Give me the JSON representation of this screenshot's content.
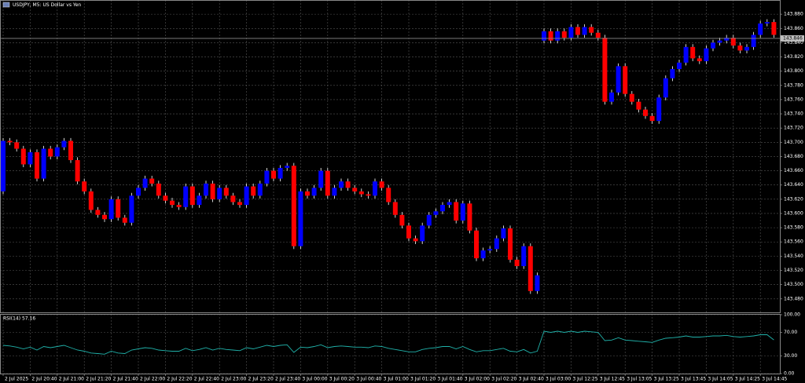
{
  "window": {
    "title": "USDJPY, M5:  US Dollar vs Yen"
  },
  "chart_data": [
    {
      "type": "candlestick",
      "categories": [
        "2 Jul 2025",
        null,
        null,
        null,
        "2 Jul 20:40",
        null,
        null,
        null,
        "2 Jul 21:00",
        null,
        null,
        null,
        "2 Jul 21:20",
        null,
        null,
        null,
        "2 Jul 21:40",
        null,
        null,
        null,
        "2 Jul 22:00",
        null,
        null,
        null,
        "2 Jul 22:20",
        null,
        null,
        null,
        "2 Jul 22:40",
        null,
        null,
        null,
        "2 Jul 23:00",
        null,
        null,
        null,
        "2 Jul 23:20",
        null,
        null,
        null,
        "2 Jul 23:40",
        null,
        null,
        null,
        "3 Jul 00:00",
        null,
        null,
        null,
        "3 Jul 00:20",
        null,
        null,
        null,
        "3 Jul 00:40",
        null,
        null,
        null,
        "3 Jul 01:00",
        null,
        null,
        null,
        "3 Jul 01:20",
        null,
        null,
        null,
        "3 Jul 01:40",
        null,
        null,
        null,
        "3 Jul 02:00",
        null,
        null,
        null,
        "3 Jul 02:20",
        null,
        null,
        null,
        "3 Jul 02:40",
        null,
        null,
        null,
        "3 Jul 03:00",
        null,
        null,
        null,
        "3 Jul 12:25",
        null,
        null,
        null,
        "3 Jul 12:45",
        null,
        null,
        null,
        "3 Jul 13:05",
        null,
        null,
        null,
        "3 Jul 13:25",
        null,
        null,
        null,
        "3 Jul 13:45",
        null,
        null,
        null,
        "3 Jul 14:05",
        null,
        null,
        null,
        "3 Jul 14:25",
        null,
        null,
        null,
        "3 Jul 14:45",
        null,
        null
      ],
      "open": [
        143.631,
        143.702,
        143.7,
        143.691,
        143.669,
        143.686,
        143.649,
        143.691,
        143.68,
        143.693,
        143.702,
        143.675,
        143.645,
        143.631,
        143.605,
        143.598,
        143.592,
        143.62,
        143.594,
        143.587,
        143.625,
        143.636,
        143.649,
        143.642,
        143.625,
        143.618,
        143.612,
        143.609,
        143.638,
        143.612,
        143.625,
        143.642,
        143.62,
        143.636,
        143.625,
        143.616,
        143.612,
        143.638,
        143.625,
        143.642,
        143.66,
        143.649,
        143.664,
        143.667,
        143.554,
        143.631,
        143.625,
        143.636,
        143.66,
        143.625,
        143.636,
        143.645,
        143.636,
        143.631,
        143.627,
        143.625,
        143.645,
        143.636,
        143.616,
        143.598,
        143.583,
        143.565,
        143.561,
        143.583,
        143.598,
        143.603,
        143.612,
        143.616,
        143.59,
        143.614,
        143.576,
        143.537,
        143.548,
        143.55,
        143.565,
        143.579,
        143.535,
        143.526,
        143.554,
        143.491,
        143.843,
        143.856,
        143.843,
        143.856,
        143.847,
        143.862,
        143.851,
        143.862,
        143.854,
        143.847,
        143.757,
        143.77,
        143.807,
        143.768,
        143.757,
        143.746,
        143.737,
        143.73,
        143.763,
        143.79,
        143.803,
        143.812,
        143.834,
        143.818,
        143.814,
        143.832,
        143.84,
        143.843,
        143.847,
        143.836,
        143.829,
        143.834,
        143.851,
        143.867,
        143.869
      ],
      "high": [
        143.706,
        143.706,
        143.704,
        143.695,
        143.69,
        143.69,
        143.695,
        143.695,
        143.697,
        143.706,
        143.706,
        143.679,
        143.649,
        143.635,
        143.609,
        143.602,
        143.624,
        143.624,
        143.598,
        143.629,
        143.64,
        143.653,
        143.653,
        143.646,
        143.629,
        143.622,
        143.616,
        143.642,
        143.642,
        143.629,
        143.646,
        143.646,
        143.64,
        143.64,
        143.629,
        143.62,
        143.642,
        143.642,
        143.646,
        143.664,
        143.664,
        143.668,
        143.671,
        143.671,
        143.635,
        143.635,
        143.64,
        143.664,
        143.664,
        143.64,
        143.649,
        143.649,
        143.64,
        143.635,
        143.631,
        143.649,
        143.649,
        143.64,
        143.62,
        143.602,
        143.587,
        143.569,
        143.587,
        143.602,
        143.607,
        143.616,
        143.62,
        143.62,
        143.618,
        143.618,
        143.58,
        143.552,
        143.554,
        143.569,
        143.583,
        143.583,
        143.539,
        143.558,
        143.558,
        143.517,
        143.86,
        143.86,
        143.86,
        143.86,
        143.866,
        143.866,
        143.866,
        143.866,
        143.858,
        143.851,
        143.774,
        143.811,
        143.811,
        143.772,
        143.761,
        143.75,
        143.741,
        143.767,
        143.794,
        143.807,
        143.816,
        143.838,
        143.838,
        143.822,
        143.836,
        143.844,
        143.847,
        143.851,
        143.851,
        143.84,
        143.838,
        143.855,
        143.871,
        143.873,
        143.873
      ],
      "low": [
        143.627,
        143.696,
        143.687,
        143.665,
        143.665,
        143.645,
        143.645,
        143.676,
        143.676,
        143.689,
        143.671,
        143.641,
        143.627,
        143.601,
        143.594,
        143.588,
        143.588,
        143.59,
        143.583,
        143.583,
        143.621,
        143.632,
        143.638,
        143.621,
        143.614,
        143.608,
        143.605,
        143.605,
        143.608,
        143.608,
        143.621,
        143.616,
        143.616,
        143.621,
        143.612,
        143.608,
        143.608,
        143.621,
        143.621,
        143.638,
        143.645,
        143.645,
        143.66,
        143.55,
        143.55,
        143.621,
        143.621,
        143.632,
        143.621,
        143.621,
        143.632,
        143.632,
        143.627,
        143.623,
        143.621,
        143.621,
        143.632,
        143.612,
        143.594,
        143.579,
        143.561,
        143.557,
        143.557,
        143.579,
        143.594,
        143.599,
        143.608,
        143.586,
        143.586,
        143.572,
        143.533,
        143.533,
        143.544,
        143.546,
        143.561,
        143.531,
        143.522,
        143.522,
        143.487,
        143.487,
        143.839,
        143.839,
        143.839,
        143.843,
        143.843,
        143.847,
        143.847,
        143.85,
        143.843,
        143.753,
        143.753,
        143.766,
        143.764,
        143.753,
        143.742,
        143.733,
        143.726,
        143.726,
        143.759,
        143.786,
        143.799,
        143.808,
        143.814,
        143.81,
        143.81,
        143.828,
        143.836,
        143.839,
        143.832,
        143.825,
        143.825,
        143.83,
        143.847,
        143.863,
        143.847
      ],
      "close": [
        143.702,
        143.7,
        143.691,
        143.669,
        143.686,
        143.649,
        143.691,
        143.68,
        143.693,
        143.702,
        143.675,
        143.645,
        143.631,
        143.605,
        143.598,
        143.592,
        143.62,
        143.594,
        143.587,
        143.625,
        143.636,
        143.649,
        143.642,
        143.625,
        143.618,
        143.612,
        143.609,
        143.638,
        143.612,
        143.625,
        143.642,
        143.62,
        143.636,
        143.625,
        143.616,
        143.612,
        143.638,
        143.625,
        143.642,
        143.66,
        143.649,
        143.664,
        143.667,
        143.554,
        143.631,
        143.625,
        143.636,
        143.66,
        143.625,
        143.636,
        143.645,
        143.636,
        143.631,
        143.627,
        143.625,
        143.645,
        143.636,
        143.616,
        143.598,
        143.583,
        143.565,
        143.561,
        143.583,
        143.598,
        143.603,
        143.612,
        143.616,
        143.59,
        143.614,
        143.576,
        143.537,
        143.548,
        143.55,
        143.565,
        143.579,
        143.535,
        143.526,
        143.554,
        143.491,
        143.513,
        143.856,
        143.843,
        143.856,
        143.847,
        143.862,
        143.851,
        143.862,
        143.854,
        143.847,
        143.757,
        143.77,
        143.807,
        143.768,
        143.757,
        143.746,
        143.737,
        143.73,
        143.763,
        143.79,
        143.803,
        143.812,
        143.834,
        143.818,
        143.814,
        143.832,
        143.84,
        143.843,
        143.847,
        143.836,
        143.829,
        143.834,
        143.851,
        143.867,
        143.869,
        143.851
      ],
      "up_color": "#0000ff",
      "down_color": "#ff0000",
      "ylim": [
        143.461,
        143.9
      ],
      "yticks": [
        {
          "value": 143.88,
          "label": "143.880"
        },
        {
          "value": 143.86,
          "label": "143.860"
        },
        {
          "value": 143.84,
          "label": "143.840"
        },
        {
          "value": 143.82,
          "label": "143.820"
        },
        {
          "value": 143.8,
          "label": "143.800"
        },
        {
          "value": 143.78,
          "label": "143.780"
        },
        {
          "value": 143.76,
          "label": "143.760"
        },
        {
          "value": 143.74,
          "label": "143.740"
        },
        {
          "value": 143.72,
          "label": "143.720"
        },
        {
          "value": 143.7,
          "label": "143.700"
        },
        {
          "value": 143.68,
          "label": "143.680"
        },
        {
          "value": 143.66,
          "label": "143.660"
        },
        {
          "value": 143.64,
          "label": "143.640"
        },
        {
          "value": 143.62,
          "label": "143.620"
        },
        {
          "value": 143.6,
          "label": "143.600"
        },
        {
          "value": 143.58,
          "label": "143.580"
        },
        {
          "value": 143.56,
          "label": "143.560"
        },
        {
          "value": 143.54,
          "label": "143.540"
        },
        {
          "value": 143.52,
          "label": "143.520"
        },
        {
          "value": 143.5,
          "label": "143.500"
        },
        {
          "value": 143.48,
          "label": "143.480"
        }
      ],
      "current_price": 143.846,
      "grid": true
    },
    {
      "type": "line",
      "title": "RSI(14) 57.16",
      "color": "#20b2aa",
      "values": [
        48,
        47,
        45,
        42,
        45,
        40,
        46,
        44,
        46,
        48,
        44,
        40,
        38,
        35,
        34,
        33,
        38,
        35,
        34,
        40,
        42,
        44,
        43,
        40,
        39,
        38,
        38,
        43,
        39,
        41,
        44,
        40,
        43,
        41,
        40,
        39,
        44,
        42,
        45,
        48,
        46,
        48,
        49,
        36,
        45,
        44,
        46,
        49,
        44,
        46,
        47,
        46,
        45,
        45,
        44,
        47,
        46,
        43,
        41,
        39,
        37,
        37,
        41,
        43,
        44,
        46,
        46,
        42,
        46,
        41,
        37,
        39,
        39,
        41,
        43,
        38,
        37,
        41,
        35,
        38,
        72,
        70,
        72,
        70,
        72,
        70,
        72,
        71,
        70,
        56,
        57,
        61,
        57,
        56,
        55,
        54,
        53,
        57,
        60,
        61,
        62,
        64,
        62,
        62,
        63,
        64,
        64,
        65,
        63,
        62,
        63,
        64,
        66,
        66,
        57.16
      ],
      "ylim": [
        0,
        100
      ],
      "yticks": [
        {
          "value": 100,
          "label": "100.00"
        },
        {
          "value": 70,
          "label": "70.00"
        },
        {
          "value": 30,
          "label": "30.00"
        },
        {
          "value": 0,
          "label": "0.00"
        }
      ],
      "grid": true
    }
  ]
}
